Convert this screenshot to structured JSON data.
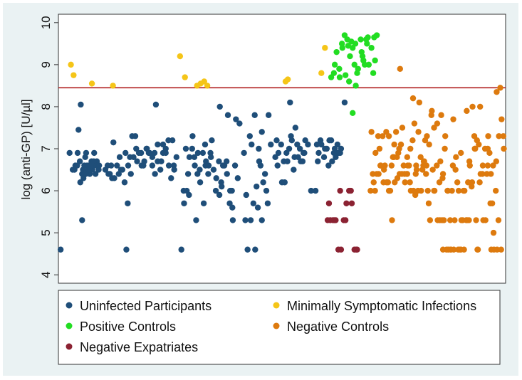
{
  "chart_data": {
    "type": "scatter",
    "title": "",
    "xlabel": "",
    "ylabel": "log (anti-GP) [U/µl]",
    "ylim": [
      3.8,
      10.2
    ],
    "xlim": [
      0,
      100
    ],
    "y_ticks": [
      "4",
      "5",
      "6",
      "7",
      "8",
      "9",
      "10"
    ],
    "reference_line": {
      "y": 8.45,
      "color": "#b22222"
    },
    "legend": {
      "placement": "bottom",
      "items": [
        {
          "label": "Uninfected Participants",
          "color": "#1f4e79"
        },
        {
          "label": "Minimally Symptomatic Infections",
          "color": "#f5c518"
        },
        {
          "label": "Positive Controls",
          "color": "#22dd22"
        },
        {
          "label": "Negative Controls",
          "color": "#dd7a0e"
        },
        {
          "label": "Negative Expatriates",
          "color": "#8b2232"
        }
      ]
    },
    "series": [
      {
        "name": "Uninfected Participants",
        "color": "#1f4e79",
        "x": [
          0.5,
          2.5,
          3.2,
          3.8,
          4.3,
          4.8,
          5.3,
          5.5,
          5.8,
          6.1,
          6.4,
          6.7,
          7.0,
          7.3,
          7.6,
          7.9,
          8.3,
          8.7,
          9.0,
          4.5,
          5.0,
          5.6,
          6.2,
          6.8,
          7.4,
          8.0,
          8.6,
          3.6,
          4.2,
          4.9,
          5.5,
          6.1,
          6.7,
          7.3,
          7.9,
          8.5,
          9.1,
          5.3,
          6.0,
          10.5,
          11.2,
          11.8,
          12.5,
          13.1,
          13.7,
          14.3,
          15.0,
          15.6,
          16.2,
          16.8,
          17.4,
          18.0,
          18.6,
          19.2,
          19.8,
          20.4,
          21.0,
          21.6,
          22.2,
          22.8,
          23.4,
          24.0,
          24.6,
          25.2,
          25.8,
          26.4,
          11.0,
          12.3,
          13.5,
          14.8,
          16.0,
          17.2,
          18.5,
          19.7,
          21.0,
          22.2,
          23.4,
          24.7,
          25.9,
          12.0,
          14.0,
          16.5,
          19.0,
          21.5,
          24.0,
          11.5,
          15.5,
          17.6,
          20.2,
          23.0,
          25.5,
          15.2,
          21.8,
          27.5,
          28.1,
          28.7,
          29.3,
          29.9,
          30.5,
          31.1,
          31.7,
          32.3,
          32.9,
          33.5,
          34.1,
          34.7,
          35.3,
          35.9,
          36.5,
          37.1,
          37.7,
          38.3,
          38.9,
          39.5,
          40.1,
          28.0,
          29.2,
          30.4,
          31.6,
          32.8,
          34.0,
          35.2,
          36.4,
          37.6,
          38.8,
          29.0,
          30.8,
          32.5,
          34.3,
          36.1,
          37.9,
          39.7,
          28.5,
          31.2,
          33.6,
          36.0,
          38.4,
          40.5,
          30.0,
          33.0,
          36.8,
          39.0,
          41.5,
          42.3,
          43.0,
          43.6,
          44.3,
          44.9,
          45.5,
          46.2,
          46.8,
          43.2,
          44.6,
          45.8,
          47.0,
          41.8,
          43.9,
          45.2,
          46.5,
          42.8,
          44.0,
          45.5,
          47.5,
          42.0,
          44.8,
          48.5,
          49.2,
          49.8,
          50.4,
          51.0,
          51.6,
          52.2,
          52.8,
          53.4,
          54.0,
          54.6,
          55.2,
          49.0,
          50.6,
          52.0,
          53.6,
          55.0,
          48.8,
          51.2,
          53.0,
          54.8,
          50.0,
          52.6,
          55.8,
          54.2,
          51.8,
          56.5,
          57.5,
          58.2,
          58.8,
          59.4,
          60.0,
          60.6,
          61.2,
          61.8,
          62.4,
          63.0,
          58.0,
          59.6,
          61.0,
          62.6,
          57.8,
          60.4,
          62.0,
          58.6,
          61.6,
          63.2,
          64.0
        ],
        "y": [
          4.6,
          6.9,
          6.5,
          6.6,
          6.9,
          6.7,
          6.4,
          6.5,
          6.6,
          6.4,
          6.6,
          6.5,
          6.4,
          6.6,
          6.5,
          6.6,
          6.4,
          6.6,
          6.5,
          7.45,
          8.05,
          6.3,
          6.9,
          6.6,
          6.7,
          6.9,
          6.7,
          6.5,
          6.6,
          6.2,
          6.5,
          6.4,
          6.5,
          6.6,
          6.7,
          6.6,
          6.6,
          5.3,
          6.8,
          6.5,
          6.4,
          6.6,
          6.3,
          6.6,
          6.8,
          6.5,
          6.9,
          6.6,
          6.4,
          6.8,
          7.0,
          6.9,
          6.6,
          6.7,
          7.0,
          6.9,
          6.6,
          6.4,
          6.7,
          6.5,
          7.1,
          6.9,
          7.2,
          6.3,
          6.6,
          6.8,
          6.6,
          7.15,
          6.4,
          6.2,
          6.8,
          7.3,
          6.9,
          7.0,
          6.8,
          7.1,
          6.9,
          6.6,
          6.5,
          6.3,
          6.5,
          7.3,
          6.6,
          6.9,
          7.0,
          6.4,
          5.7,
          6.7,
          6.9,
          6.7,
          7.2,
          4.6,
          8.05,
          4.6,
          5.7,
          6.0,
          6.8,
          7.0,
          6.6,
          6.4,
          6.2,
          6.9,
          6.6,
          6.4,
          6.8,
          6.5,
          6.3,
          6.7,
          6.1,
          6.6,
          6.4,
          5.7,
          5.6,
          6.6,
          6.3,
          6.0,
          5.9,
          6.8,
          6.5,
          7.1,
          6.9,
          6.0,
          6.2,
          6.7,
          6.0,
          6.4,
          5.3,
          5.7,
          7.2,
          8.0,
          7.8,
          7.7,
          7.0,
          6.9,
          6.6,
          5.9,
          6.0,
          7.6,
          7.3,
          6.7,
          6.6,
          5.3,
          6.9,
          4.6,
          5.3,
          5.7,
          6.1,
          6.7,
          7.4,
          6.4,
          5.7,
          7.1,
          5.6,
          6.2,
          7.8,
          5.3,
          7.8,
          6.6,
          6.0,
          7.3,
          4.6,
          5.3,
          7.1,
          5.9,
          7.0,
          6.8,
          6.9,
          7.1,
          6.7,
          6.9,
          7.0,
          7.2,
          6.8,
          7.1,
          7.0,
          6.7,
          7.2,
          6.6,
          6.2,
          7.3,
          6.8,
          6.9,
          7.2,
          6.7,
          7.5,
          6.9,
          6.2,
          6.5,
          7.1,
          6.7,
          8.1,
          6.0,
          6.0,
          6.9,
          7.1,
          6.8,
          7.0,
          7.2,
          6.7,
          7.0,
          7.1,
          6.9,
          6.7,
          7.0,
          7.2,
          6.9,
          7.1,
          6.6,
          6.8,
          7.2,
          6.9,
          7.0,
          8.1
        ]
      },
      {
        "name": "Minimally Symptomatic Infections",
        "color": "#f5c518",
        "x": [
          2.8,
          3.4,
          7.5,
          12.2,
          27.2,
          28.3,
          31.0,
          31.8,
          32.6,
          33.3,
          50.8,
          51.3,
          58.8,
          59.6
        ],
        "y": [
          9.0,
          8.75,
          8.55,
          8.5,
          9.2,
          8.7,
          8.5,
          8.55,
          8.6,
          8.5,
          8.6,
          8.65,
          8.8,
          9.4
        ]
      },
      {
        "name": "Positive Controls",
        "color": "#22dd22",
        "x": [
          61.0,
          61.6,
          62.2,
          62.8,
          63.4,
          64.0,
          64.6,
          65.2,
          65.8,
          66.4,
          67.0,
          67.6,
          68.2,
          68.8,
          69.4,
          70.0,
          70.6,
          71.2,
          61.8,
          62.9,
          64.2,
          65.5,
          66.8,
          68.0,
          69.2,
          70.4,
          63.5,
          65.0,
          66.2,
          67.8,
          69.0,
          64.8,
          66.5,
          68.5,
          70.8,
          65.8
        ],
        "y": [
          8.7,
          8.8,
          9.3,
          8.9,
          9.5,
          9.7,
          9.6,
          9.2,
          9.4,
          9.5,
          8.9,
          9.6,
          9.1,
          9.6,
          9.0,
          9.4,
          9.65,
          9.7,
          9.0,
          8.7,
          8.75,
          9.55,
          8.8,
          9.2,
          9.65,
          8.8,
          9.4,
          8.6,
          9.0,
          9.3,
          9.5,
          9.45,
          8.5,
          9.0,
          9.1,
          7.85
        ]
      },
      {
        "name": "Negative Expatriates",
        "color": "#8b2232",
        "x": [
          60.2,
          60.8,
          61.4,
          62.0,
          62.6,
          63.2,
          63.8,
          64.4,
          65.0,
          65.6,
          66.2,
          66.8,
          60.5,
          61.7,
          63.0,
          64.2,
          65.4,
          66.6
        ],
        "y": [
          5.3,
          5.3,
          5.3,
          5.3,
          4.6,
          4.6,
          5.3,
          5.7,
          6.0,
          5.7,
          4.6,
          4.6,
          5.7,
          5.3,
          6.0,
          5.3,
          6.0,
          4.6
        ]
      },
      {
        "name": "Negative Controls",
        "color": "#dd7a0e",
        "x": [
          69.8,
          70.3,
          70.9,
          71.5,
          72.1,
          72.7,
          73.3,
          73.9,
          74.5,
          75.1,
          75.7,
          76.3,
          76.9,
          77.5,
          78.1,
          78.7,
          79.3,
          79.9,
          80.5,
          81.1,
          81.7,
          82.3,
          82.9,
          83.5,
          84.1,
          84.7,
          85.3,
          85.9,
          86.5,
          87.1,
          87.7,
          88.3,
          88.9,
          89.5,
          90.1,
          90.7,
          91.3,
          91.9,
          92.5,
          93.1,
          93.7,
          94.3,
          94.9,
          95.5,
          96.1,
          96.7,
          97.3,
          97.9,
          98.5,
          99.1,
          70.5,
          71.8,
          73.0,
          74.2,
          75.5,
          76.8,
          78.0,
          79.2,
          80.4,
          81.6,
          82.8,
          84.0,
          85.2,
          86.4,
          87.6,
          88.8,
          90.0,
          91.2,
          92.4,
          93.6,
          94.8,
          96.0,
          97.2,
          98.4,
          71.2,
          72.5,
          73.7,
          75.0,
          76.2,
          77.4,
          78.6,
          79.8,
          81.0,
          82.2,
          83.4,
          84.6,
          85.8,
          87.0,
          88.2,
          89.4,
          90.6,
          91.8,
          93.0,
          94.2,
          95.4,
          96.6,
          97.8,
          99.0,
          70.0,
          72.0,
          74.0,
          76.0,
          78.0,
          80.0,
          82.0,
          84.0,
          86.0,
          88.0,
          90.0,
          92.0,
          94.0,
          96.0,
          98.0,
          72.8,
          75.8,
          78.8,
          81.8,
          84.8,
          87.8,
          90.8,
          93.8,
          96.8,
          99.5,
          73.4,
          76.4,
          79.4,
          82.4,
          85.4,
          88.4,
          91.4,
          94.4,
          97.4,
          70.8,
          74.8,
          78.4,
          82.6,
          86.2,
          89.8,
          93.4,
          97.0,
          75.2,
          77.9,
          80.7,
          83.7,
          86.8,
          89.2,
          92.6,
          95.8,
          98.8,
          74.6,
          77.2,
          80.1,
          83.1,
          86.0,
          88.6,
          91.6,
          95.0,
          98.1,
          99.6,
          71.6,
          73.9,
          76.6,
          79.6,
          81.4,
          85.6,
          87.2,
          90.4,
          93.2,
          96.4
        ],
        "y": [
          6.0,
          6.4,
          6.9,
          7.3,
          6.6,
          6.2,
          7.4,
          6.0,
          6.6,
          7.1,
          6.8,
          6.4,
          7.5,
          6.2,
          6.6,
          7.0,
          8.2,
          6.4,
          7.4,
          6.0,
          6.7,
          6.6,
          7.1,
          7.9,
          6.0,
          7.6,
          5.3,
          6.3,
          7.3,
          6.0,
          4.6,
          7.7,
          6.8,
          6.0,
          5.3,
          4.6,
          7.9,
          6.7,
          6.2,
          7.0,
          4.6,
          8.0,
          6.6,
          5.3,
          7.3,
          6.4,
          5.0,
          6.7,
          7.3,
          7.7,
          6.2,
          7.0,
          6.6,
          6.0,
          7.4,
          6.4,
          6.8,
          7.2,
          6.0,
          6.6,
          5.7,
          7.5,
          6.2,
          7.0,
          5.3,
          6.5,
          6.9,
          5.3,
          6.1,
          7.2,
          6.4,
          7.0,
          6.6,
          5.3,
          6.4,
          7.3,
          6.2,
          6.8,
          7.0,
          6.4,
          6.2,
          5.9,
          6.8,
          6.4,
          7.8,
          6.6,
          5.3,
          6.0,
          6.6,
          4.6,
          6.0,
          5.3,
          7.3,
          6.2,
          7.0,
          5.7,
          6.0,
          4.6,
          7.4,
          6.6,
          6.0,
          6.9,
          6.4,
          6.6,
          7.2,
          6.0,
          6.4,
          6.0,
          4.6,
          6.6,
          7.1,
          6.6,
          8.35,
          6.5,
          6.3,
          6.0,
          6.7,
          5.3,
          4.6,
          6.0,
          4.6,
          4.6,
          7.3,
          6.2,
          8.9,
          6.0,
          7.3,
          6.7,
          4.6,
          5.3,
          6.4,
          4.6,
          6.0,
          6.8,
          6.6,
          6.0,
          5.3,
          4.6,
          5.3,
          5.7,
          6.2,
          6.4,
          8.1,
          6.5,
          4.6,
          6.2,
          8.0,
          6.4,
          8.45,
          5.3,
          6.6,
          6.5,
          5.3,
          4.6,
          5.3,
          6.2,
          5.3,
          4.6,
          7.0,
          6.4,
          7.3,
          7.1,
          7.6,
          6.5,
          7.8,
          4.6,
          5.3,
          7.0,
          6.9
        ]
      }
    ]
  }
}
